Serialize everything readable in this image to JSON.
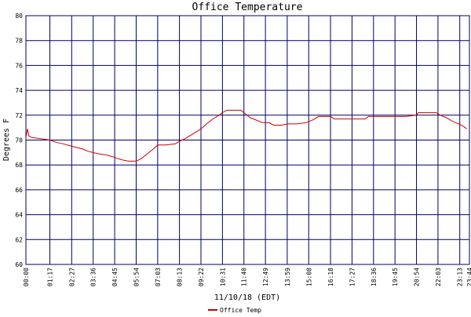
{
  "chart_data": {
    "type": "line",
    "title": "Office Temperature",
    "x_label": "11/10/18 (EDT)",
    "y_label": "Degrees F",
    "x": [
      "00:00",
      "00:05",
      "00:10",
      "00:20",
      "00:50",
      "01:17",
      "01:40",
      "02:00",
      "02:27",
      "03:00",
      "03:20",
      "03:50",
      "04:20",
      "04:45",
      "05:10",
      "05:30",
      "05:54",
      "06:10",
      "06:30",
      "06:50",
      "07:03",
      "07:30",
      "08:00",
      "08:13",
      "08:30",
      "08:50",
      "09:10",
      "09:22",
      "09:40",
      "10:00",
      "10:20",
      "10:31",
      "10:45",
      "11:10",
      "11:30",
      "11:40",
      "12:00",
      "12:20",
      "12:40",
      "13:00",
      "13:15",
      "13:40",
      "14:00",
      "14:30",
      "15:00",
      "15:20",
      "15:40",
      "16:18",
      "16:30",
      "17:27",
      "18:10",
      "18:20",
      "19:45",
      "20:20",
      "20:54",
      "21:00",
      "21:30",
      "21:58",
      "22:10",
      "22:30",
      "22:50",
      "23:10",
      "23:25",
      "23:35"
    ],
    "series": [
      {
        "name": "Office Temp",
        "color": "#cc0000",
        "values": [
          70.2,
          70.9,
          70.3,
          70.2,
          70.1,
          70.0,
          69.8,
          69.7,
          69.5,
          69.3,
          69.1,
          68.9,
          68.8,
          68.6,
          68.4,
          68.3,
          68.3,
          68.5,
          68.9,
          69.3,
          69.6,
          69.6,
          69.7,
          69.9,
          70.1,
          70.4,
          70.7,
          70.9,
          71.3,
          71.7,
          72.0,
          72.2,
          72.4,
          72.4,
          72.4,
          72.2,
          71.8,
          71.6,
          71.4,
          71.4,
          71.2,
          71.2,
          71.3,
          71.3,
          71.4,
          71.6,
          71.9,
          71.9,
          71.7,
          71.7,
          71.7,
          71.9,
          71.9,
          71.9,
          72.0,
          72.2,
          72.2,
          72.2,
          72.0,
          71.8,
          71.5,
          71.3,
          71.1,
          70.9
        ]
      }
    ],
    "xlim": [
      "00:00",
      "23:44"
    ],
    "xticks": [
      "00:00",
      "01:17",
      "02:27",
      "03:36",
      "04:45",
      "05:54",
      "07:03",
      "08:13",
      "09:22",
      "10:31",
      "11:40",
      "12:49",
      "13:59",
      "15:08",
      "16:18",
      "17:27",
      "18:36",
      "19:45",
      "20:54",
      "22:03",
      "23:13",
      "23:44"
    ],
    "ylim": [
      60,
      80
    ],
    "yticks": [
      60,
      62,
      64,
      66,
      68,
      70,
      72,
      74,
      76,
      78,
      80
    ],
    "grid": true,
    "grid_color": "#000066",
    "legend": "bottom"
  }
}
